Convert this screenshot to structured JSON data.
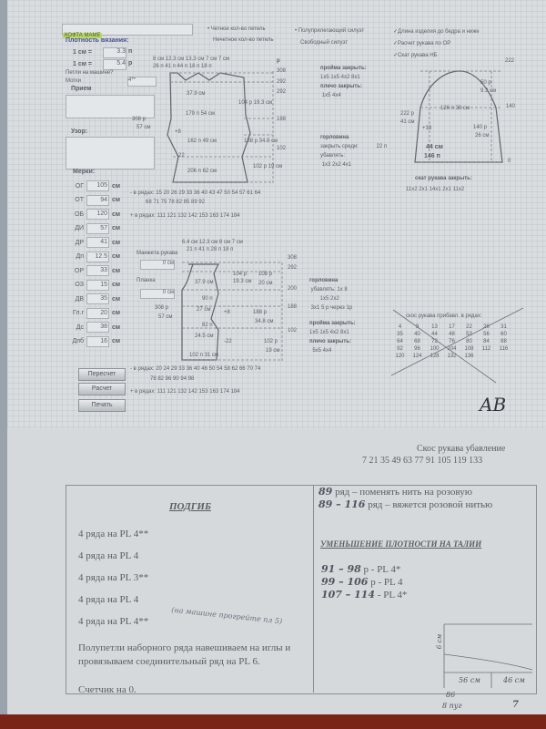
{
  "form": {
    "title_value": "КОФТА МАМЕ",
    "radio_parity": [
      "Четное кол-во петель",
      "Нечетное кол-во петель"
    ],
    "radio_silhouette": [
      "Полуприлегающий силуэт",
      "Свободный силуэт"
    ],
    "checks": [
      "Длина изделия до бедра и ниже",
      "Расчет рукава по ОР",
      "Скат рукава НБ"
    ],
    "density_label": "Плотность вязания:",
    "density": [
      {
        "label": "1 см =",
        "value": "3.3",
        "unit": "п"
      },
      {
        "label": "1 см =",
        "value": "5.4",
        "unit": "р"
      }
    ],
    "machine_label": "Петли на машине?",
    "skeins_label": "Мотки",
    "skeins_value": "4**",
    "prием_label": "Прием",
    "pattern_label": "Узор:",
    "pattern_rows": "308 р",
    "pattern_cm": "57 см",
    "measures_label": "Мерки:",
    "unit": "см",
    "measures": [
      {
        "label": "ОГ",
        "value": "105"
      },
      {
        "label": "ОТ",
        "value": "94"
      },
      {
        "label": "ОБ",
        "value": "120"
      },
      {
        "label": "ДИ",
        "value": "57"
      },
      {
        "label": "ДР",
        "value": "41"
      },
      {
        "label": "Дп",
        "value": "12.5"
      },
      {
        "label": "ОР",
        "value": "33"
      },
      {
        "label": "ОЗ",
        "value": "15"
      },
      {
        "label": "ДВ",
        "value": "35"
      },
      {
        "label": "Гл.г",
        "value": "20"
      },
      {
        "label": "Дс",
        "value": "38"
      },
      {
        "label": "Дпб",
        "value": "16"
      }
    ],
    "buttons": {
      "recalc": "Пересчет",
      "calc": "Расчет",
      "print": "Печать"
    }
  },
  "back": {
    "top_cm": "8 см   12.3 см   13.3 см          7 см          7 см",
    "top_st": "26 п      41 п      44 п              18 п          18 п",
    "scale": [
      "308",
      "292",
      "292",
      "188",
      "102"
    ],
    "labels": [
      "37.9 см",
      "179 п   54 см",
      "104 р  19.3 см",
      "162 п   49 см",
      "188 р  34.8 см",
      "206 п   62 см",
      "102 р  19 см",
      "+8",
      "-22",
      "р"
    ],
    "minus_rows_label": "- в рядах:",
    "minus_rows": "15  20  26  29  33  36  40  43  47  50  54  57  61  64",
    "minus_rows2": "68  71  75  78  82  85  89  92",
    "plus_rows_label": "+ в рядах:",
    "plus_rows": "111  121  132  142  153  163  174  184",
    "armhole": [
      "пройма закрыть:",
      "1x5 1x5  4x2  8x1",
      "плечо  закрыть:",
      "1x5  4x4"
    ],
    "neck": [
      "горловина",
      "закрыть среди:",
      "22 п",
      "убавлять:",
      "1x3 2x2 4x1"
    ]
  },
  "sleeve": {
    "scale": [
      "222",
      "140",
      "0"
    ],
    "labels": [
      "50 р",
      "9.3 см",
      "126 п   38 см",
      "222 р",
      "41 см",
      "+33",
      "140 р",
      "26 см",
      "44 см",
      "146 п"
    ],
    "cap_title": "скат рукава закрыть:",
    "cap": "11x2   2x1   14x1  2x1   11x2"
  },
  "front": {
    "cuff_label": "Манжета рукава",
    "cuff_value": "0",
    "band_label": "Планка",
    "band_value": "0",
    "top_cm": "6.4 см  12.3 см   8 см      7 см",
    "top_st": "21 п      41 п     28 п      18 п",
    "scale": [
      "308",
      "292",
      "200",
      "188",
      "102"
    ],
    "labels": [
      "104 р",
      "19.3 см",
      "108 р",
      "20 см",
      "37.9 см",
      "90 п",
      "27 см",
      "188 р",
      "34.8 см",
      "82 п",
      "24.5 см",
      "102 р",
      "19 см",
      "102 п   31 см",
      "308 р",
      "57 см",
      "+8",
      "-22"
    ],
    "minus_rows_label": "- в рядах:",
    "minus_rows": "20  24  29  33  36  40  46  50  54  58  62  66  70  74",
    "minus_rows2": "78  82  86  90  94  98",
    "plus_rows_label": "+ в рядах:",
    "plus_rows": "111  121  132  142  153  163  174  184",
    "neck": [
      "горловина",
      "убавлять: 1x 8",
      "1x5 2x2",
      "3x1  5 р через 1р"
    ],
    "armhole": [
      "пройма закрыть:",
      "1x5 1x5   4x2   8x1",
      "плечо  закрыть:",
      "5x5  4x4"
    ]
  },
  "sleeve_increase": {
    "title": "скос рукава прибавл. в рядах:",
    "rows": [
      [
        "4",
        "9",
        "13",
        "17",
        "22",
        "26",
        "31"
      ],
      [
        "35",
        "40",
        "44",
        "48",
        "53",
        "56",
        "60"
      ],
      [
        "64",
        "68",
        "72",
        "76",
        "80",
        "84",
        "88"
      ],
      [
        "92",
        "96",
        "100",
        "104",
        "108",
        "112",
        "116"
      ],
      [
        "120",
        "124",
        "128",
        "132",
        "136"
      ]
    ]
  },
  "signature": "AB",
  "sleeve_decrease": {
    "title": "Скос рукава убавление",
    "rows": "7  21  35  49  63  77  91  105  119  133"
  },
  "notes": {
    "hem_title": "ПОДГИБ",
    "hem_lines": [
      "4 ряда на PL 4**",
      "4 ряда на PL 4",
      "4 ряда на PL 3**",
      "4 ряда на PL 4",
      "4 ряда на PL 4**"
    ],
    "hem_handwritten": "(на машине прогрейте пл 5)",
    "hem_text": "Полупетли наборного ряда навешиваем на иглы и провязываем соединительный ряд на PL 6.",
    "counter": "Счетчик на 0.",
    "color_lines": [
      {
        "hand": "89",
        "text": " ряд – поменять нить на розовую"
      },
      {
        "hand": "89 – 116",
        "text": " ряд – вяжется розовой нитью"
      }
    ],
    "waist_title": "УМЕНЬШЕНИЕ ПЛОТНОСТИ НА ТАЛИИ",
    "waist_lines": [
      {
        "hand": "91 – 98",
        "text": " р - PL 4*"
      },
      {
        "hand": "99 – 106",
        "text": " р - PL 4"
      },
      {
        "hand": "107 – 114",
        "text": " - PL 4*"
      }
    ],
    "sketch_labels": [
      "6 см",
      "56 см",
      "46 см",
      "86",
      "8 пуг",
      "7"
    ]
  }
}
